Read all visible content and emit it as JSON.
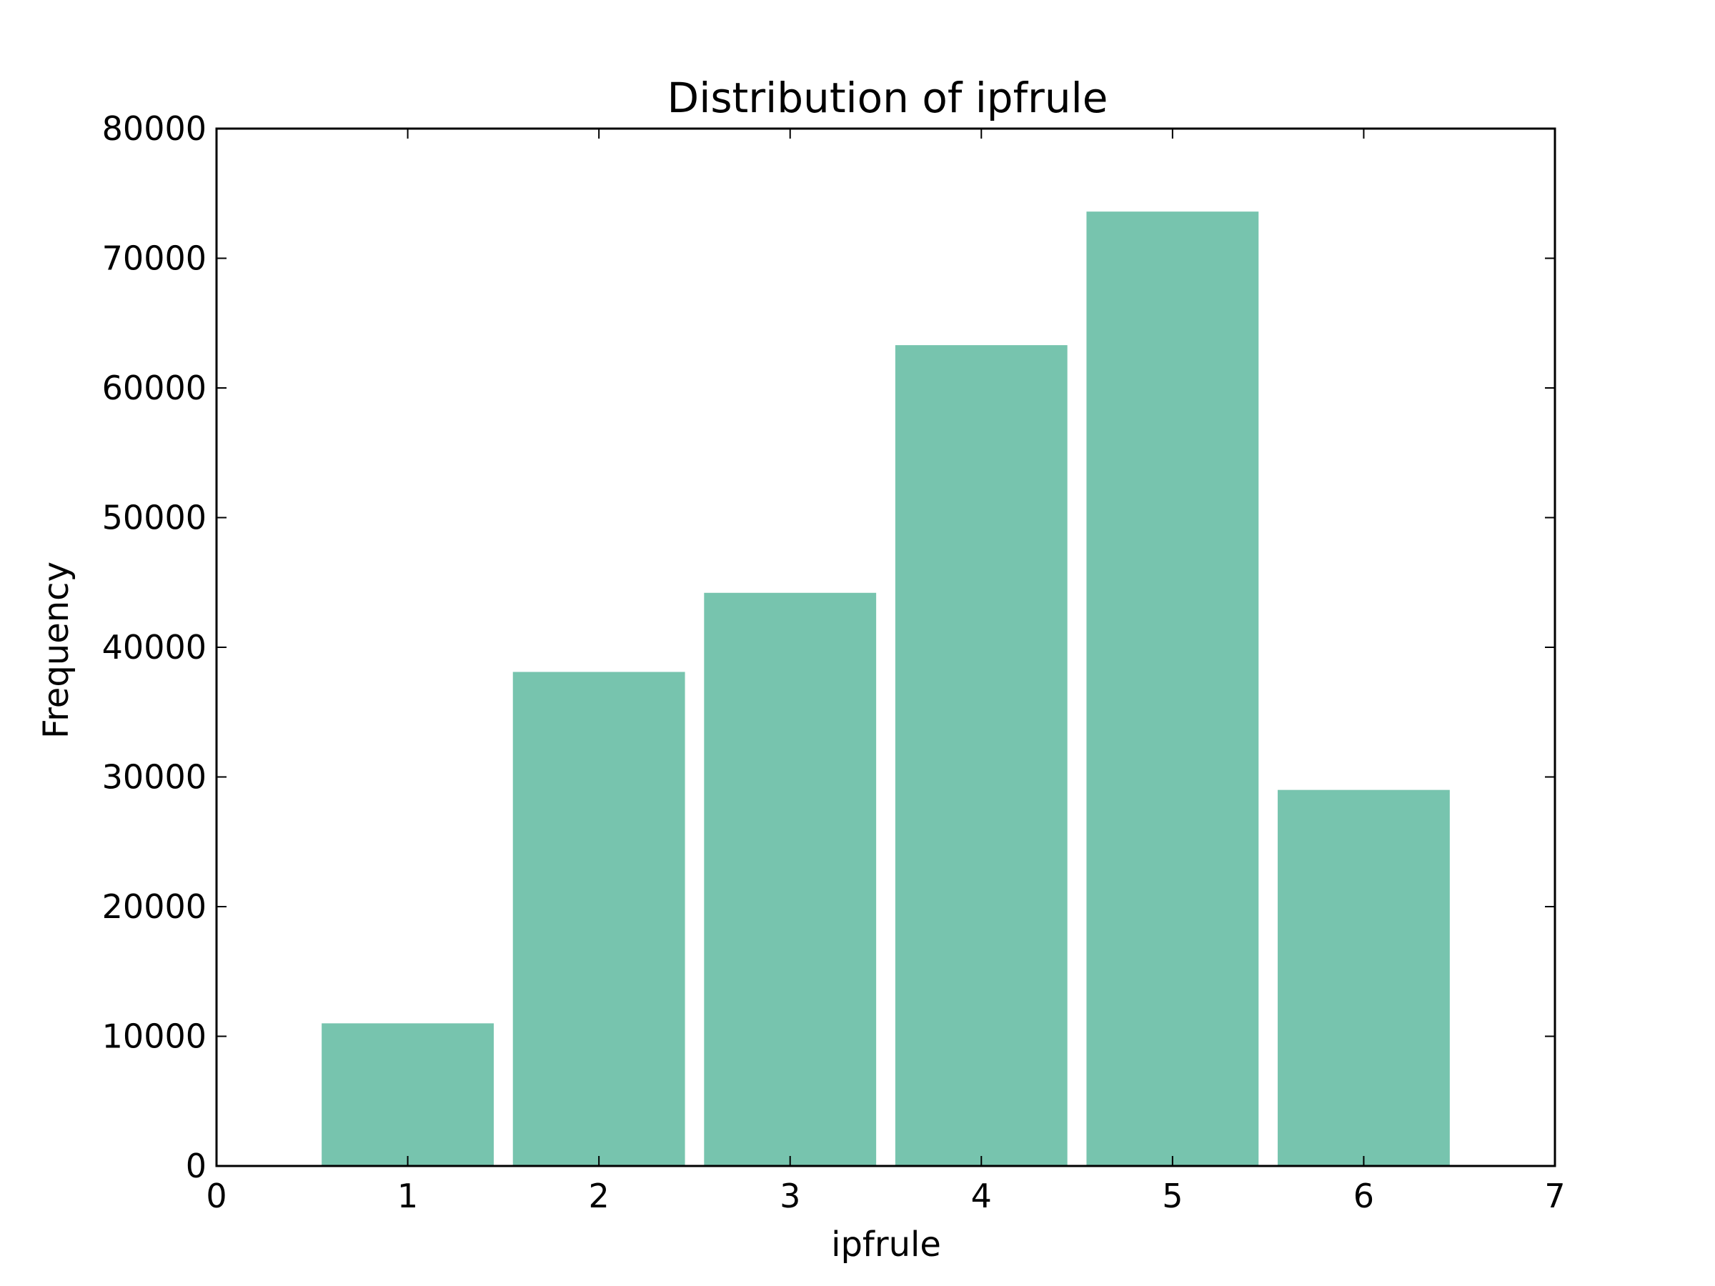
{
  "chart_data": {
    "type": "bar",
    "title": "Distribution of ipfrule",
    "xlabel": "ipfrule",
    "ylabel": "Frequency",
    "categories": [
      1,
      2,
      3,
      4,
      5,
      6
    ],
    "values": [
      11000,
      38100,
      44200,
      63300,
      73600,
      29000
    ],
    "xlim": [
      0,
      7
    ],
    "ylim": [
      0,
      80000
    ],
    "xticks": [
      0,
      1,
      2,
      3,
      4,
      5,
      6,
      7
    ],
    "yticks": [
      0,
      10000,
      20000,
      30000,
      40000,
      50000,
      60000,
      70000,
      80000
    ],
    "bar_color": "#77c4ae",
    "grid": false,
    "legend": "none"
  }
}
